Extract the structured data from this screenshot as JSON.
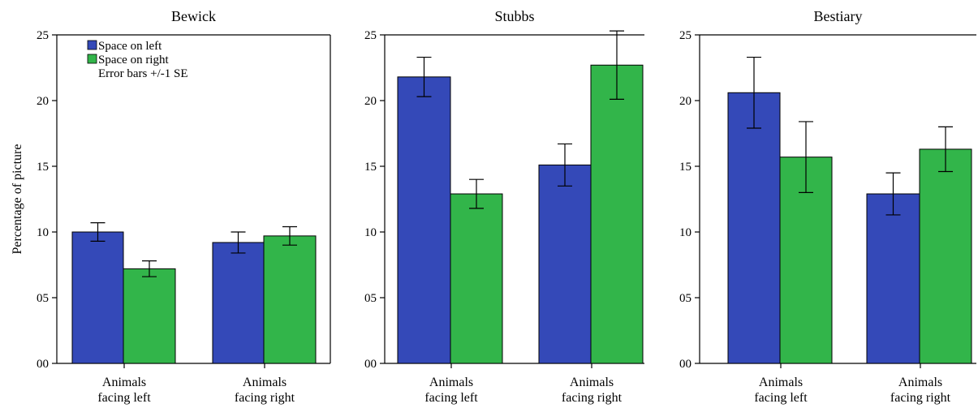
{
  "chart_data": [
    {
      "type": "bar",
      "title": "Bewick",
      "categories": [
        "Animals\nfacing left",
        "Animals\nfacing right"
      ],
      "ylabel": "Percentage of picture",
      "ylim": [
        0,
        25
      ],
      "yticks": [
        "00",
        "05",
        "10",
        "15",
        "20",
        "25"
      ],
      "series": [
        {
          "name": "Space on left",
          "color": "#3449b8",
          "values": [
            10.0,
            9.2
          ],
          "error": [
            0.7,
            0.8
          ]
        },
        {
          "name": "Space on right",
          "color": "#32b54a",
          "values": [
            7.2,
            9.7
          ],
          "error": [
            0.6,
            0.7
          ]
        }
      ],
      "legend": {
        "position": "top-left",
        "note": "Error bars +/-1 SE"
      },
      "grid": false
    },
    {
      "type": "bar",
      "title": "Stubbs",
      "categories": [
        "Animals\nfacing left",
        "Animals\nfacing right"
      ],
      "ylim": [
        0,
        25
      ],
      "yticks": [
        "00",
        "05",
        "10",
        "15",
        "20",
        "25"
      ],
      "series": [
        {
          "name": "Space on left",
          "color": "#3449b8",
          "values": [
            21.8,
            15.1
          ],
          "error": [
            1.5,
            1.6
          ]
        },
        {
          "name": "Space on right",
          "color": "#32b54a",
          "values": [
            12.9,
            22.7
          ],
          "error": [
            1.1,
            2.6
          ]
        }
      ],
      "grid": false
    },
    {
      "type": "bar",
      "title": "Bestiary",
      "categories": [
        "Animals\nfacing left",
        "Animals\nfacing right"
      ],
      "ylim": [
        0,
        25
      ],
      "yticks": [
        "00",
        "05",
        "10",
        "15",
        "20",
        "25"
      ],
      "series": [
        {
          "name": "Space on left",
          "color": "#3449b8",
          "values": [
            20.6,
            12.9
          ],
          "error": [
            2.7,
            1.6
          ]
        },
        {
          "name": "Space on right",
          "color": "#32b54a",
          "values": [
            15.7,
            16.3
          ],
          "error": [
            2.7,
            1.7
          ]
        }
      ],
      "grid": false
    }
  ]
}
